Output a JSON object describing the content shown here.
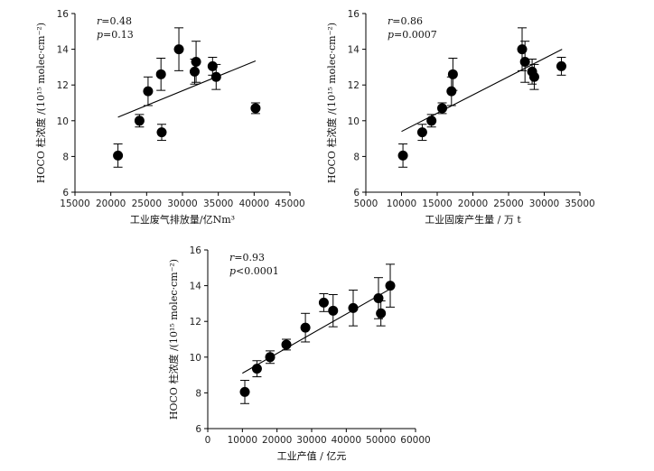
{
  "chart_data": [
    {
      "type": "scatter",
      "xlabel": "工业废气排放量/亿Nm³",
      "ylabel": "HOCO 柱浓度 /(10¹⁵ molec·cm⁻²)",
      "xlim": [
        15000,
        45000
      ],
      "ylim": [
        6,
        16
      ],
      "xticks": [
        15000,
        20000,
        25000,
        30000,
        35000,
        40000,
        45000
      ],
      "yticks": [
        6,
        8,
        10,
        12,
        14,
        16
      ],
      "annotation": {
        "r_label": "r",
        "r_value": "=0.48",
        "p_label": "p",
        "p_value": "=0.13"
      },
      "points": [
        {
          "x": 21000,
          "y": 8.05,
          "err": 0.65
        },
        {
          "x": 24000,
          "y": 10.0,
          "err": 0.35
        },
        {
          "x": 25200,
          "y": 11.65,
          "err": 0.8
        },
        {
          "x": 27000,
          "y": 12.6,
          "err": 0.9
        },
        {
          "x": 27100,
          "y": 9.35,
          "err": 0.45
        },
        {
          "x": 29500,
          "y": 14.0,
          "err": 1.2
        },
        {
          "x": 31700,
          "y": 12.75,
          "err": 0.7
        },
        {
          "x": 31900,
          "y": 13.3,
          "err": 1.15
        },
        {
          "x": 34200,
          "y": 13.05,
          "err": 0.5
        },
        {
          "x": 34700,
          "y": 12.45,
          "err": 0.7
        },
        {
          "x": 40200,
          "y": 10.7,
          "err": 0.3
        }
      ],
      "fit": {
        "x": [
          21000,
          40200
        ],
        "y": [
          10.2,
          13.35
        ]
      }
    },
    {
      "type": "scatter",
      "xlabel": "工业固废产生量 / 万 t",
      "ylabel": "HOCO 柱浓度 /(10¹⁵ molec·cm⁻²)",
      "xlim": [
        5000,
        35000
      ],
      "ylim": [
        6,
        16
      ],
      "xticks": [
        5000,
        10000,
        15000,
        20000,
        25000,
        30000,
        35000
      ],
      "yticks": [
        6,
        8,
        10,
        12,
        14,
        16
      ],
      "annotation": {
        "r_label": "r",
        "r_value": "=0.86",
        "p_label": "p",
        "p_value": "=0.0007"
      },
      "points": [
        {
          "x": 10200,
          "y": 8.05,
          "err": 0.65
        },
        {
          "x": 12900,
          "y": 9.35,
          "err": 0.45
        },
        {
          "x": 14200,
          "y": 10.0,
          "err": 0.35
        },
        {
          "x": 15700,
          "y": 10.7,
          "err": 0.3
        },
        {
          "x": 17000,
          "y": 11.65,
          "err": 0.8
        },
        {
          "x": 17200,
          "y": 12.6,
          "err": 0.9
        },
        {
          "x": 26900,
          "y": 14.0,
          "err": 1.2
        },
        {
          "x": 27300,
          "y": 13.3,
          "err": 1.15
        },
        {
          "x": 28300,
          "y": 12.75,
          "err": 0.7
        },
        {
          "x": 28600,
          "y": 12.45,
          "err": 0.7
        },
        {
          "x": 32400,
          "y": 13.05,
          "err": 0.5
        }
      ],
      "fit": {
        "x": [
          10000,
          32500
        ],
        "y": [
          9.4,
          14.0
        ]
      }
    },
    {
      "type": "scatter",
      "xlabel": "工业产值 / 亿元",
      "ylabel": "HOCO 柱浓度 /(10¹⁵ molec·cm⁻²)",
      "xlim": [
        0,
        60000
      ],
      "ylim": [
        6,
        16
      ],
      "xticks": [
        0,
        10000,
        20000,
        30000,
        40000,
        50000,
        60000
      ],
      "yticks": [
        6,
        8,
        10,
        12,
        14,
        16
      ],
      "annotation": {
        "r_label": "r",
        "r_value": "=0.93",
        "p_label": "p",
        "p_value": "<0.0001"
      },
      "points": [
        {
          "x": 10700,
          "y": 8.05,
          "err": 0.65
        },
        {
          "x": 14200,
          "y": 9.35,
          "err": 0.45
        },
        {
          "x": 18000,
          "y": 10.0,
          "err": 0.35
        },
        {
          "x": 22700,
          "y": 10.7,
          "err": 0.3
        },
        {
          "x": 28200,
          "y": 11.65,
          "err": 0.8
        },
        {
          "x": 33500,
          "y": 13.05,
          "err": 0.5
        },
        {
          "x": 36200,
          "y": 12.6,
          "err": 0.9
        },
        {
          "x": 42000,
          "y": 12.75,
          "err": 1.0
        },
        {
          "x": 49300,
          "y": 13.3,
          "err": 1.15
        },
        {
          "x": 50000,
          "y": 12.45,
          "err": 0.7
        },
        {
          "x": 52700,
          "y": 14.0,
          "err": 1.2
        }
      ],
      "fit": {
        "x": [
          10000,
          53000
        ],
        "y": [
          9.1,
          13.85
        ]
      }
    }
  ]
}
